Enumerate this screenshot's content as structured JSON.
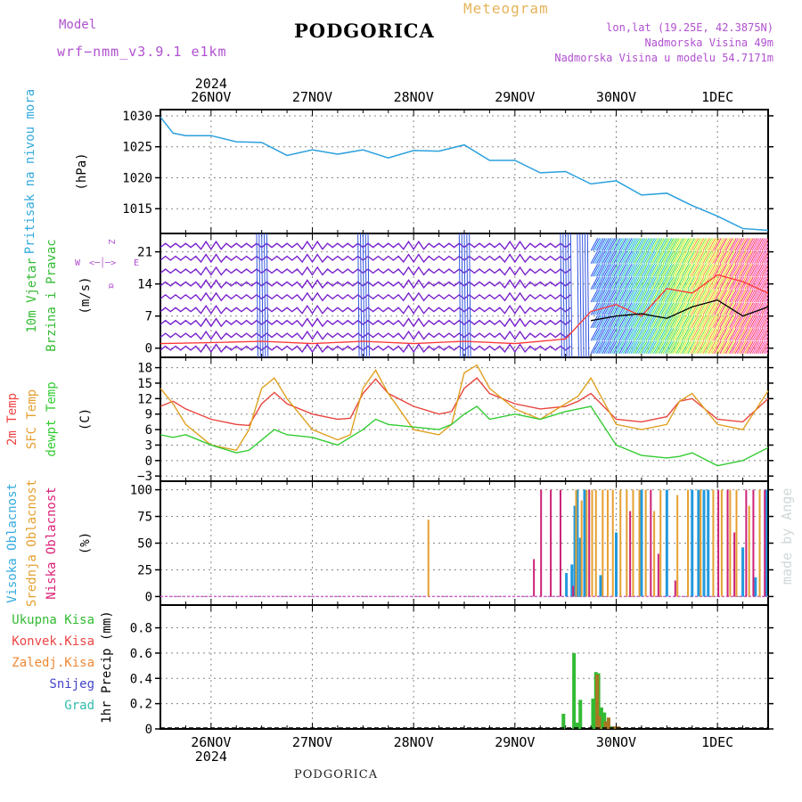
{
  "header": {
    "model_label": "Model",
    "model_name": "wrf−nmm_v3.9.1  e1km",
    "station": "PODGORICA",
    "product": "Meteogram",
    "coords": "lon,lat (19.25E, 42.3875N)",
    "altitude": "Nadmorska Visina 49m",
    "model_altitude": "Nadmorska Visina u modelu 54.7171m"
  },
  "footer": {
    "station": "PODGORICA",
    "credit": "made by Angel"
  },
  "time_axis": {
    "year": "2024",
    "day_labels": [
      "26NOV",
      "27NOV",
      "28NOV",
      "29NOV",
      "30NOV",
      "1DEC"
    ],
    "hours_per_tick": 24,
    "x_start_hours": -12,
    "x_end_hours": 132
  },
  "chart_data": [
    {
      "type": "line",
      "panel": "pressure",
      "ylabel": [
        "Pritisak na nivou mora",
        "(hPa)"
      ],
      "ylabel_colors": [
        "#33aadd",
        "#000000"
      ],
      "yticks": [
        1015,
        1020,
        1025,
        1030
      ],
      "ylim": [
        1011,
        1031
      ],
      "series": [
        {
          "color": "#2aa0dd",
          "x": [
            -12,
            -9,
            -6,
            0,
            6,
            12,
            18,
            24,
            30,
            36,
            42,
            48,
            54,
            60,
            66,
            72,
            78,
            84,
            90,
            96,
            102,
            108,
            114,
            120,
            126,
            132
          ],
          "y": [
            1029.8,
            1027.2,
            1026.8,
            1026.8,
            1025.8,
            1025.7,
            1023.6,
            1024.5,
            1023.8,
            1024.5,
            1023.2,
            1024.4,
            1024.3,
            1025.3,
            1022.8,
            1022.8,
            1020.8,
            1021.0,
            1019.0,
            1019.5,
            1017.2,
            1017.5,
            1015.5,
            1013.8,
            1011.8,
            1011.5
          ]
        }
      ]
    },
    {
      "type": "line",
      "panel": "wind",
      "ylabel": [
        "10m Vjetar",
        "Brzina i Pravac",
        "(m/s)"
      ],
      "ylabel_colors": [
        "#33bb33",
        "#33bb33",
        "#000000"
      ],
      "compass": {
        "n": "Z",
        "s": "α",
        "w": "W",
        "e": "E"
      },
      "yticks": [
        0,
        7,
        14,
        21
      ],
      "ylim": [
        -2,
        25
      ],
      "series": [
        {
          "name": "",
          "color": "#ff3333",
          "x": [
            -12,
            0,
            12,
            24,
            36,
            48,
            60,
            72,
            84,
            90,
            96,
            102,
            108,
            114,
            120,
            126,
            132
          ],
          "y": [
            1.0,
            1.2,
            1.5,
            1.0,
            1.5,
            1.0,
            1.5,
            1.0,
            2.0,
            8.0,
            9.5,
            7.0,
            13.0,
            12.0,
            16.0,
            14.5,
            12.0
          ]
        },
        {
          "name": "",
          "color": "#000000",
          "x": [
            90,
            96,
            102,
            108,
            114,
            120,
            126,
            132
          ],
          "y": [
            6.0,
            7.0,
            7.5,
            6.5,
            9.0,
            10.5,
            7.0,
            9.0
          ]
        }
      ]
    },
    {
      "type": "line",
      "panel": "temperature",
      "ylabel": [
        "2m Temp",
        "SFC Temp",
        "dewpt Temp",
        "(C)"
      ],
      "ylabel_colors": [
        "#ee4444",
        "#e6a030",
        "#33cc33",
        "#000000"
      ],
      "yticks": [
        -3,
        0,
        3,
        6,
        9,
        12,
        15,
        18
      ],
      "ylim": [
        -4,
        20
      ],
      "series": [
        {
          "name": "2m Temp",
          "color": "#e8453c",
          "x": [
            -12,
            -9,
            -6,
            0,
            6,
            9,
            12,
            15,
            18,
            24,
            30,
            33,
            36,
            39,
            42,
            48,
            54,
            57,
            60,
            63,
            66,
            72,
            78,
            84,
            87,
            90,
            96,
            102,
            108,
            111,
            114,
            120,
            126,
            132
          ],
          "y": [
            10.5,
            11.5,
            10,
            8,
            7,
            6.8,
            11,
            13.2,
            11,
            9,
            8,
            8.2,
            13,
            15.8,
            13,
            10.5,
            9,
            9.5,
            14,
            16,
            13,
            11,
            10,
            10.5,
            11.5,
            13,
            8,
            7.5,
            8.5,
            11.5,
            12,
            8,
            7.5,
            12
          ]
        },
        {
          "name": "SFC Temp",
          "color": "#e0a020",
          "x": [
            -12,
            -9,
            -6,
            0,
            6,
            9,
            12,
            15,
            18,
            24,
            30,
            33,
            36,
            39,
            42,
            48,
            54,
            57,
            60,
            63,
            66,
            72,
            78,
            84,
            87,
            90,
            96,
            102,
            108,
            111,
            114,
            120,
            126,
            132
          ],
          "y": [
            14,
            11,
            7,
            3,
            2,
            6,
            14,
            16,
            12,
            6,
            4,
            5,
            14,
            17.5,
            13,
            6,
            5,
            7,
            17,
            18.5,
            14,
            10,
            8,
            11,
            12.5,
            16,
            7,
            6,
            7,
            11.5,
            13,
            7,
            6,
            13.5
          ]
        },
        {
          "name": "dewpt Temp",
          "color": "#33cc33",
          "x": [
            -12,
            -9,
            -6,
            0,
            6,
            9,
            12,
            15,
            18,
            24,
            30,
            36,
            39,
            42,
            48,
            54,
            57,
            60,
            63,
            66,
            72,
            78,
            84,
            87,
            90,
            96,
            102,
            108,
            111,
            114,
            120,
            126,
            132
          ],
          "y": [
            5,
            4.5,
            5,
            3,
            1.5,
            2,
            4,
            6,
            5,
            4.5,
            3,
            6,
            8,
            7,
            6.5,
            6,
            7,
            9,
            10.5,
            8,
            9,
            8,
            9.5,
            10,
            10.5,
            3,
            1,
            0.5,
            0.8,
            1.5,
            -1,
            0,
            2.5
          ]
        }
      ]
    },
    {
      "type": "bar",
      "panel": "cloud",
      "ylabel": [
        "Visoka Oblacnost",
        "Srednja Oblacnost",
        "Niska Oblacnost",
        "(%)"
      ],
      "ylabel_colors": [
        "#33aadd",
        "#e6a030",
        "#dd2277",
        "#000000"
      ],
      "yticks": [
        0,
        25,
        50,
        75,
        100
      ],
      "ylim": [
        -8,
        108
      ],
      "baseline_color": "#cc66cc",
      "series": [
        {
          "name": "Visoka Oblacnost",
          "color": "#2299dd",
          "x": [
            84.2,
            85.5,
            86.2,
            86.8,
            87.5,
            88.5,
            92.3,
            96.0,
            102.0,
            108.0,
            114.0,
            115.5,
            116.8,
            117.8,
            126.0,
            129.0,
            131.5
          ],
          "y": [
            22,
            30,
            85,
            100,
            55,
            100,
            20,
            60,
            100,
            100,
            100,
            100,
            100,
            100,
            46,
            18,
            100
          ]
        },
        {
          "name": "Srednja Oblacnost",
          "color": "#e6a030",
          "x": [
            51.5,
            86.5,
            87.8,
            89.0,
            90.3,
            91.2,
            92.8,
            94.0,
            95.2,
            97.0,
            98.5,
            100.0,
            101.5,
            103.0,
            105.0,
            106.5,
            110.5,
            113.0,
            116.0,
            119.0,
            121.0,
            123.0,
            124.5,
            127.5,
            130.0
          ],
          "y": [
            72,
            100,
            90,
            100,
            100,
            100,
            100,
            100,
            100,
            100,
            100,
            100,
            100,
            100,
            80,
            100,
            95,
            100,
            100,
            100,
            100,
            100,
            100,
            85,
            100
          ]
        },
        {
          "name": "Niska Oblacnost",
          "color": "#cc2277",
          "x": [
            76.5,
            78.2,
            80.5,
            82.8,
            85.8,
            89.6,
            99.3,
            104.2,
            106.0,
            110.0,
            120.2,
            122.4,
            124.0,
            126.8,
            128.5,
            131.2
          ],
          "y": [
            35,
            100,
            100,
            100,
            10,
            100,
            80,
            100,
            40,
            15,
            100,
            100,
            60,
            100,
            100,
            100
          ]
        }
      ]
    },
    {
      "type": "bar",
      "panel": "precipitation",
      "ylabel": [
        "1hr Precip (mm)"
      ],
      "ylabel_colors": [
        "#000000"
      ],
      "legend": [
        {
          "name": "Ukupna Kisa",
          "color": "#33bb33"
        },
        {
          "name": "Konvek.Kisa",
          "color": "#ee4444"
        },
        {
          "name": "Zaledj.Kisa",
          "color": "#ee8833"
        },
        {
          "name": "Snijeg",
          "color": "#4444cc"
        },
        {
          "name": "Grad",
          "color": "#33bbaa"
        }
      ],
      "yticks": [
        0,
        0.2,
        0.4,
        0.6,
        0.8
      ],
      "ylim": [
        0,
        0.98
      ],
      "series": [
        {
          "name": "Ukupna Kisa",
          "color": "#33bb33",
          "x": [
            83.5,
            86.0,
            86.8,
            87.5,
            90.5,
            91.2,
            91.8,
            92.5,
            93.2,
            94.0,
            94.8
          ],
          "y": [
            0.12,
            0.6,
            0.05,
            0.23,
            0.24,
            0.45,
            0.44,
            0.17,
            0.13,
            0.03,
            0.02
          ]
        },
        {
          "name": "Zaledj.Kisa",
          "color": "#aa7722",
          "x": [
            91.5,
            92.0,
            93.5,
            94.2,
            95.5,
            96.5
          ],
          "y": [
            0.43,
            0.1,
            0.06,
            0.09,
            0.02,
            0.02
          ]
        }
      ]
    }
  ]
}
